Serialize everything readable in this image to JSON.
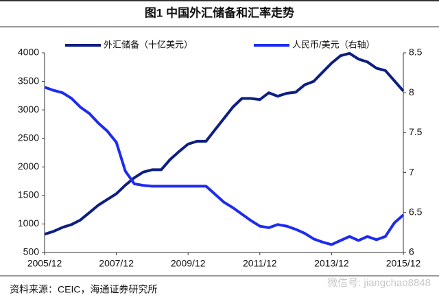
{
  "chart_data": {
    "type": "line",
    "title": "图1  中国外汇储备和汇率走势",
    "source": "资料来源：CEIC，海通证券研究所",
    "watermark": "微信号: jiangchao8848",
    "x": [
      "2005/12",
      "2006/03",
      "2006/06",
      "2006/09",
      "2006/12",
      "2007/03",
      "2007/06",
      "2007/09",
      "2007/12",
      "2008/03",
      "2008/06",
      "2008/09",
      "2008/12",
      "2009/03",
      "2009/06",
      "2009/09",
      "2009/12",
      "2010/03",
      "2010/06",
      "2010/09",
      "2010/12",
      "2011/03",
      "2011/06",
      "2011/09",
      "2011/12",
      "2012/03",
      "2012/06",
      "2012/09",
      "2012/12",
      "2013/03",
      "2013/06",
      "2013/09",
      "2013/12",
      "2014/03",
      "2014/06",
      "2014/09",
      "2014/12",
      "2015/03",
      "2015/06",
      "2015/09",
      "2015/12"
    ],
    "xlim": [
      "2005/12",
      "2015/12"
    ],
    "xticks": [
      "2005/12",
      "2007/12",
      "2009/12",
      "2011/12",
      "2013/12",
      "2015/12"
    ],
    "ylim": [
      500,
      4000
    ],
    "yticks": [
      500,
      1000,
      1500,
      2000,
      2500,
      3000,
      3500,
      4000
    ],
    "y2lim": [
      6,
      8.5
    ],
    "y2ticks": [
      6,
      6.5,
      7,
      7.5,
      8,
      8.5
    ],
    "legend": "top",
    "series": [
      {
        "name": "外汇储备（十亿美元）",
        "color": "#0d1f80",
        "values": [
          820,
          870,
          940,
          990,
          1070,
          1200,
          1330,
          1430,
          1530,
          1680,
          1810,
          1910,
          1950,
          1950,
          2130,
          2270,
          2400,
          2450,
          2450,
          2650,
          2850,
          3050,
          3200,
          3200,
          3180,
          3300,
          3240,
          3290,
          3310,
          3440,
          3500,
          3660,
          3820,
          3950,
          3990,
          3890,
          3840,
          3730,
          3690,
          3510,
          3330
        ]
      },
      {
        "name": "人民币/美元（右轴）",
        "color": "#1e2cf0",
        "axis": "y2",
        "values": [
          8.07,
          8.03,
          8.0,
          7.93,
          7.82,
          7.74,
          7.62,
          7.52,
          7.38,
          7.02,
          6.86,
          6.84,
          6.83,
          6.83,
          6.83,
          6.83,
          6.83,
          6.83,
          6.83,
          6.73,
          6.63,
          6.56,
          6.48,
          6.4,
          6.33,
          6.31,
          6.35,
          6.33,
          6.29,
          6.24,
          6.17,
          6.13,
          6.1,
          6.15,
          6.2,
          6.15,
          6.2,
          6.16,
          6.2,
          6.37,
          6.47
        ]
      }
    ]
  }
}
